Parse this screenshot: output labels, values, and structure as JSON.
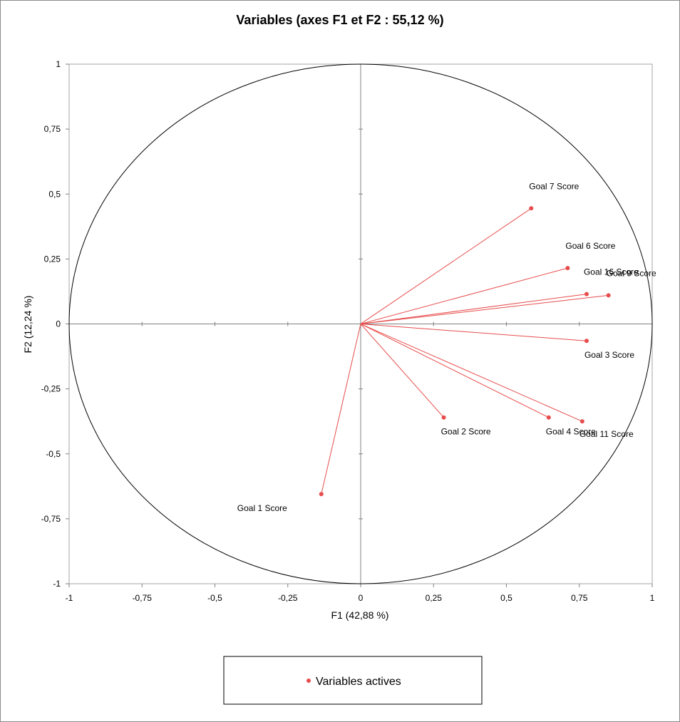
{
  "chart_data": {
    "type": "scatter",
    "title": "Variables (axes F1 et F2 : 55,12 %)",
    "xlabel": "F1 (42,88 %)",
    "ylabel": "F2 (12,24 %)",
    "xlim": [
      -1,
      1
    ],
    "ylim": [
      -1,
      1
    ],
    "x_ticks": [
      "-1",
      "-0,75",
      "-0,5",
      "-0,25",
      "0",
      "0,25",
      "0,5",
      "0,75",
      "1"
    ],
    "y_ticks": [
      "1",
      "0,75",
      "0,5",
      "0,25",
      "0",
      "-0,25",
      "-0,5",
      "-0,75",
      "-1"
    ],
    "legend_position": "bottom",
    "grid": false,
    "correlation_circle": true,
    "series": [
      {
        "name": "Variables actives",
        "color": "#e84c4c",
        "points": [
          {
            "label": "Goal 1 Score",
            "x": -0.135,
            "y": -0.655
          },
          {
            "label": "Goal 2 Score",
            "x": 0.285,
            "y": -0.36
          },
          {
            "label": "Goal 3 Score",
            "x": 0.775,
            "y": -0.065
          },
          {
            "label": "Goal 4 Score",
            "x": 0.645,
            "y": -0.36
          },
          {
            "label": "Goal 6 Score",
            "x": 0.71,
            "y": 0.215
          },
          {
            "label": "Goal 7 Score",
            "x": 0.585,
            "y": 0.445
          },
          {
            "label": "Goal 9 Score",
            "x": 0.85,
            "y": 0.11
          },
          {
            "label": "Goal 11 Score",
            "x": 0.76,
            "y": -0.375
          },
          {
            "label": "Goal 16 Score",
            "x": 0.775,
            "y": 0.115
          }
        ]
      }
    ]
  }
}
